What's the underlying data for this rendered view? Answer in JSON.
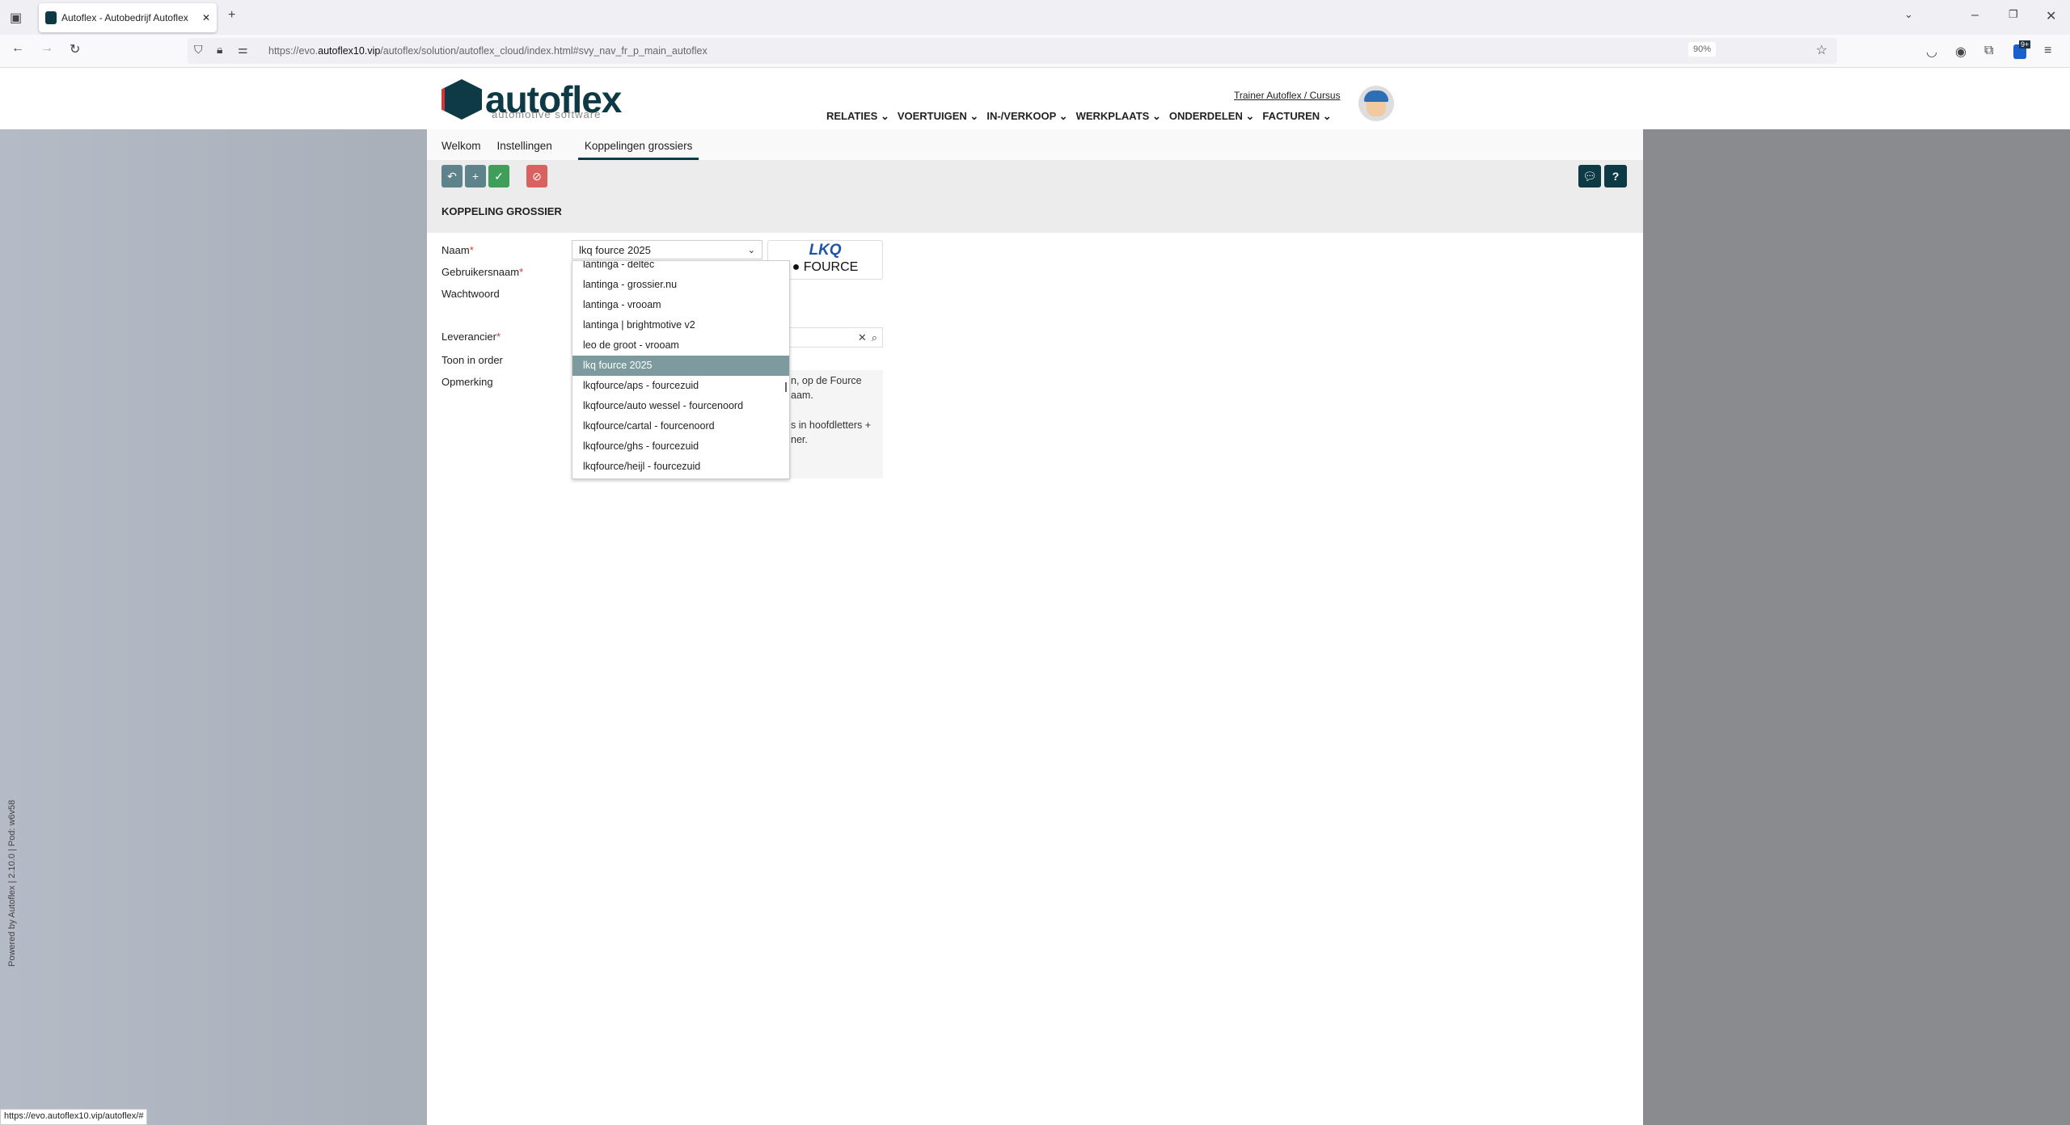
{
  "browser": {
    "tab_title": "Autoflex - Autobedrijf Autoflex",
    "url_host_prefix": "https://evo.",
    "url_host": "autoflex10.vip",
    "url_path": "/autoflex/solution/autoflex_cloud/index.html#svy_nav_fr_p_main_autoflex",
    "zoom": "90%",
    "badge": "9+",
    "status_url": "https://evo.autoflex10.vip/autoflex/#"
  },
  "header": {
    "logo_text": "autoflex",
    "logo_sub": "automotive software",
    "user": "Trainer Autoflex / Cursus",
    "nav": [
      "RELATIES",
      "VOERTUIGEN",
      "IN-/VERKOOP",
      "WERKPLAATS",
      "ONDERDELEN",
      "FACTUREN"
    ]
  },
  "tabs": [
    "Welkom",
    "Instellingen",
    "Koppelingen grossiers"
  ],
  "section_title": "KOPPELING GROSSIER",
  "form": {
    "labels": {
      "naam": "Naam",
      "gebruikersnaam": "Gebruikersnaam",
      "wachtwoord": "Wachtwoord",
      "leverancier": "Leverancier",
      "toon": "Toon in order",
      "opmerking": "Opmerking"
    },
    "naam_value": "lkq fource 2025",
    "logo": {
      "line1": "LKQ",
      "line2": "FOURCE"
    },
    "opmerking_fragments": [
      "n, op de Fource",
      "aam.",
      "s in hoofdletters +",
      "ner."
    ]
  },
  "dropdown": {
    "options": [
      "lantinga - deltec",
      "lantinga - grossier.nu",
      "lantinga - vrooam",
      "lantinga | brightmotive v2",
      "leo de groot - vrooam",
      "lkq fource 2025",
      "lkqfource/aps - fourcezuid",
      "lkqfource/auto wessel - fourcenoord",
      "lkqfource/cartal - fourcenoord",
      "lkqfource/ghs - fourcezuid",
      "lkqfource/heijl - fourcezuid"
    ],
    "selected": "lkq fource 2025"
  },
  "footer": {
    "powered": "Powered by Autoflex | 2.10.0 | Pod: w6v58"
  },
  "colors": {
    "brand": "#0d3a45",
    "accent": "#d43838",
    "save": "#3f9e5a",
    "cancel": "#d9615f",
    "toolbar_btn": "#5f838a"
  }
}
